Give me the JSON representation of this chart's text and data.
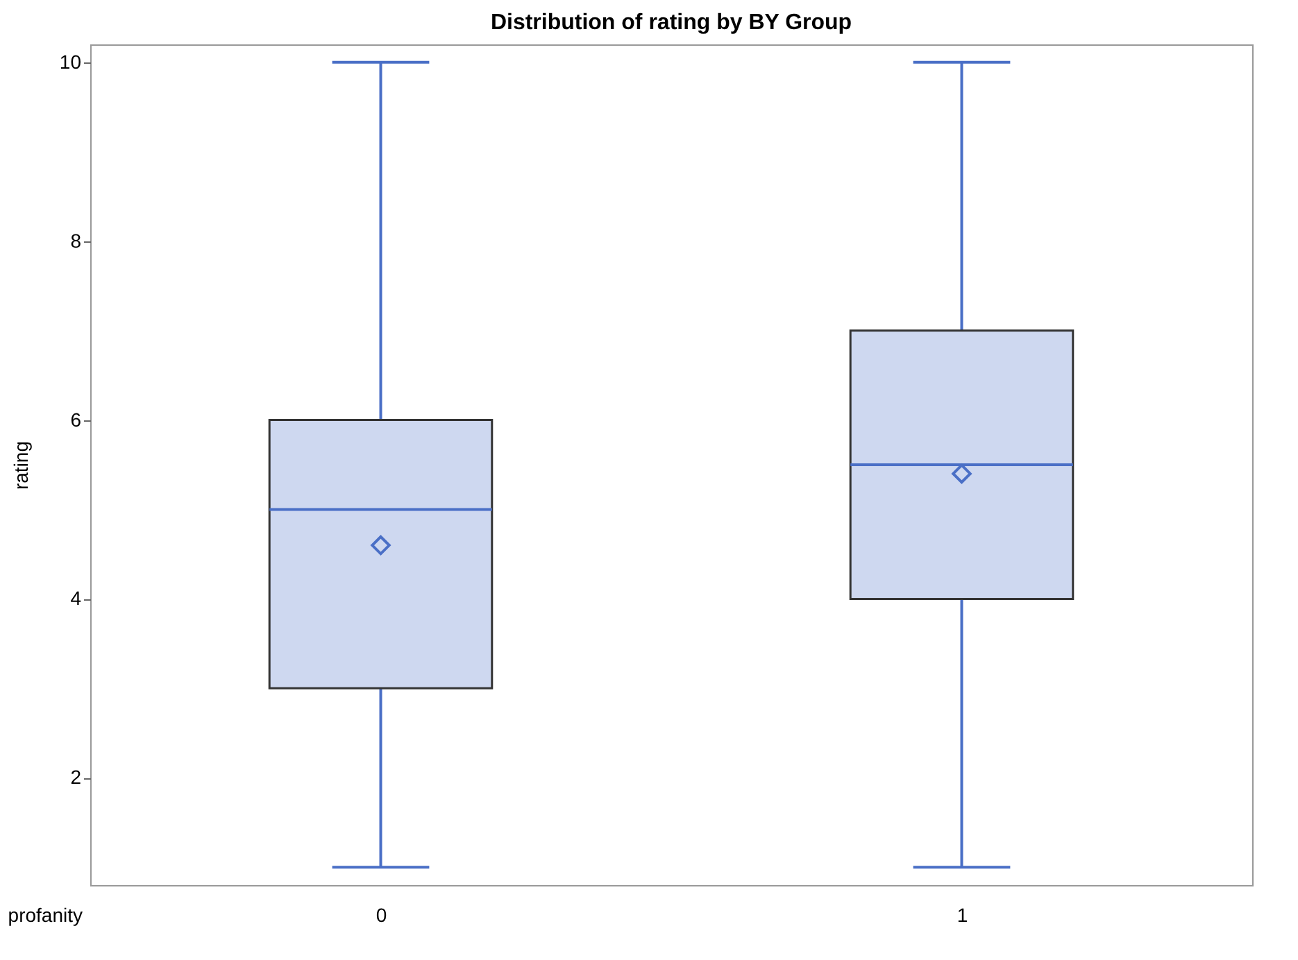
{
  "chart_data": {
    "type": "box",
    "title": "Distribution of rating by BY Group",
    "xlabel": "profanity",
    "ylabel": "rating",
    "categories": [
      "0",
      "1"
    ],
    "boxes": [
      {
        "low": 1,
        "q1": 3,
        "median": 5,
        "q3": 6,
        "high": 10,
        "mean": 4.6
      },
      {
        "low": 1,
        "q1": 4,
        "median": 5.5,
        "q3": 7,
        "high": 10,
        "mean": 5.4
      }
    ],
    "color": "#4a6fc6",
    "ylim": [
      0.8,
      10.2
    ],
    "yticks": [
      2,
      4,
      6,
      8,
      10
    ],
    "grid": false
  }
}
